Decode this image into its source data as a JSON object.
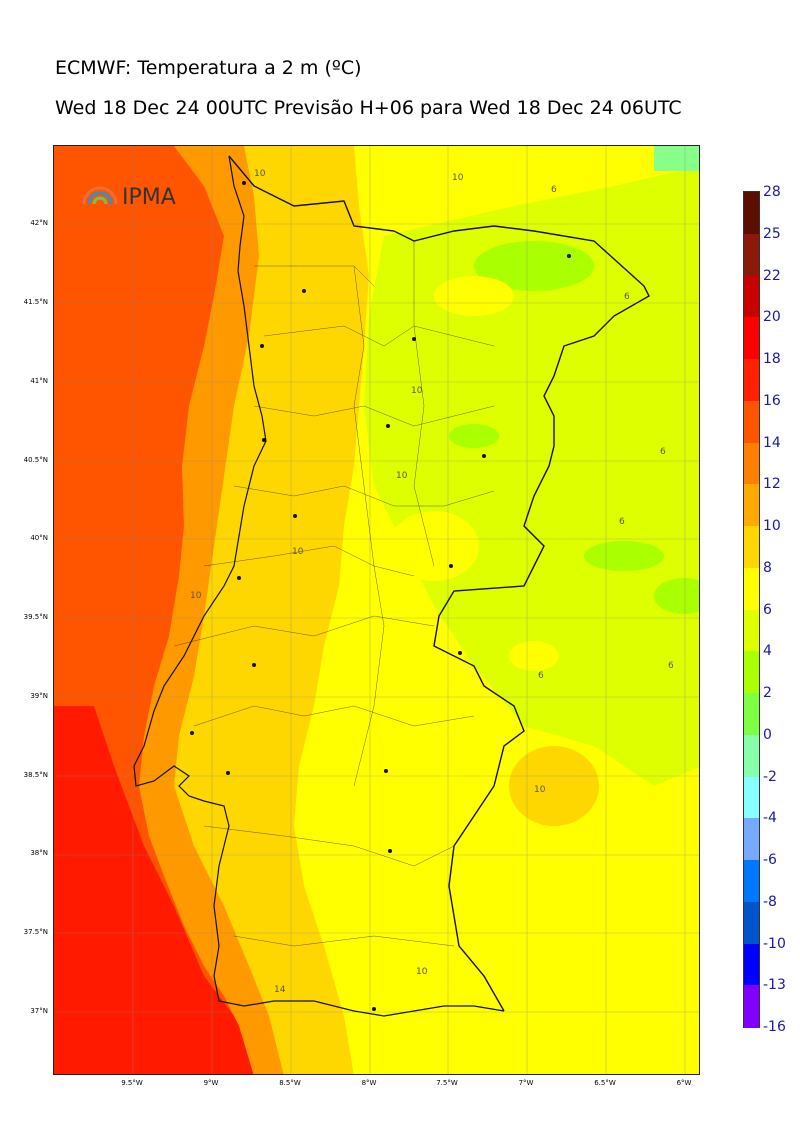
{
  "header": {
    "title": "ECMWF: Temperatura a 2 m (ºC)",
    "subtitle": "Wed 18 Dec 24 00UTC Previsão H+06 para Wed 18 Dec 24 06UTC"
  },
  "logo": {
    "text": "IPMA"
  },
  "map": {
    "lat_labels": [
      "42°N",
      "41.5°N",
      "41°N",
      "40.5°N",
      "40°N",
      "39.5°N",
      "39°N",
      "38.5°N",
      "38°N",
      "37.5°N",
      "37°N"
    ],
    "lon_labels": [
      "9.5°W",
      "9°W",
      "8.5°W",
      "8°W",
      "7.5°W",
      "7°W",
      "6.5°W",
      "6°W"
    ],
    "contour_labels": [
      "10",
      "6",
      "10",
      "6",
      "10",
      "10",
      "6",
      "6",
      "10",
      "10",
      "6",
      "10",
      "10",
      "14",
      "6"
    ],
    "colors": {
      "sea_warm": "#ff5500",
      "sea_hot": "#ff1a00",
      "land_warm": "#ffdd00",
      "land_mild": "#ffff00",
      "land_cool": "#ddff00"
    }
  },
  "colorbar": {
    "labels": [
      "28",
      "25",
      "22",
      "20",
      "18",
      "16",
      "14",
      "12",
      "10",
      "8",
      "6",
      "4",
      "2",
      "0",
      "-2",
      "-4",
      "-6",
      "-8",
      "-10",
      "-13",
      "-16"
    ],
    "colors": [
      "#5b0f00",
      "#8b1a0a",
      "#c80000",
      "#ff0000",
      "#ff2200",
      "#ff5500",
      "#ff7f00",
      "#ffaa00",
      "#ffd700",
      "#ffff00",
      "#ddff00",
      "#aaff00",
      "#7fff44",
      "#88ffaa",
      "#88ffff",
      "#77aaff",
      "#0077ff",
      "#0055cc",
      "#0000ff",
      "#7f00ff",
      "#dd00ff"
    ]
  }
}
